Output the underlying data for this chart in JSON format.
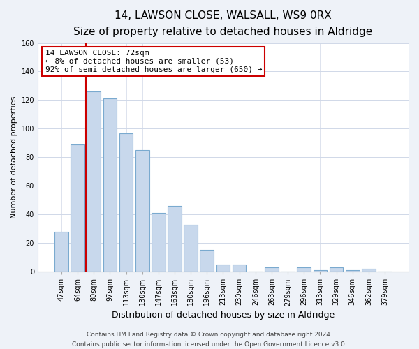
{
  "title": "14, LAWSON CLOSE, WALSALL, WS9 0RX",
  "subtitle": "Size of property relative to detached houses in Aldridge",
  "xlabel": "Distribution of detached houses by size in Aldridge",
  "ylabel": "Number of detached properties",
  "bar_labels": [
    "47sqm",
    "64sqm",
    "80sqm",
    "97sqm",
    "113sqm",
    "130sqm",
    "147sqm",
    "163sqm",
    "180sqm",
    "196sqm",
    "213sqm",
    "230sqm",
    "246sqm",
    "263sqm",
    "279sqm",
    "296sqm",
    "313sqm",
    "329sqm",
    "346sqm",
    "362sqm",
    "379sqm"
  ],
  "bar_heights": [
    28,
    89,
    126,
    121,
    97,
    85,
    41,
    46,
    33,
    15,
    5,
    5,
    0,
    3,
    0,
    3,
    1,
    3,
    1,
    2,
    0
  ],
  "bar_color": "#c8d8ec",
  "bar_edge_color": "#7aaacf",
  "marker_line_color": "#cc0000",
  "annotation_text": "14 LAWSON CLOSE: 72sqm\n← 8% of detached houses are smaller (53)\n92% of semi-detached houses are larger (650) →",
  "annotation_box_edge_color": "#cc0000",
  "annotation_box_face_color": "white",
  "ylim": [
    0,
    160
  ],
  "yticks": [
    0,
    20,
    40,
    60,
    80,
    100,
    120,
    140,
    160
  ],
  "footer_line1": "Contains HM Land Registry data © Crown copyright and database right 2024.",
  "footer_line2": "Contains public sector information licensed under the Open Government Licence v3.0.",
  "bg_color": "#eef2f8",
  "plot_bg_color": "white",
  "grid_color": "#d0d8e8",
  "title_fontsize": 11,
  "subtitle_fontsize": 9.5,
  "xlabel_fontsize": 9,
  "ylabel_fontsize": 8,
  "tick_fontsize": 7,
  "annotation_fontsize": 8,
  "footer_fontsize": 6.5
}
